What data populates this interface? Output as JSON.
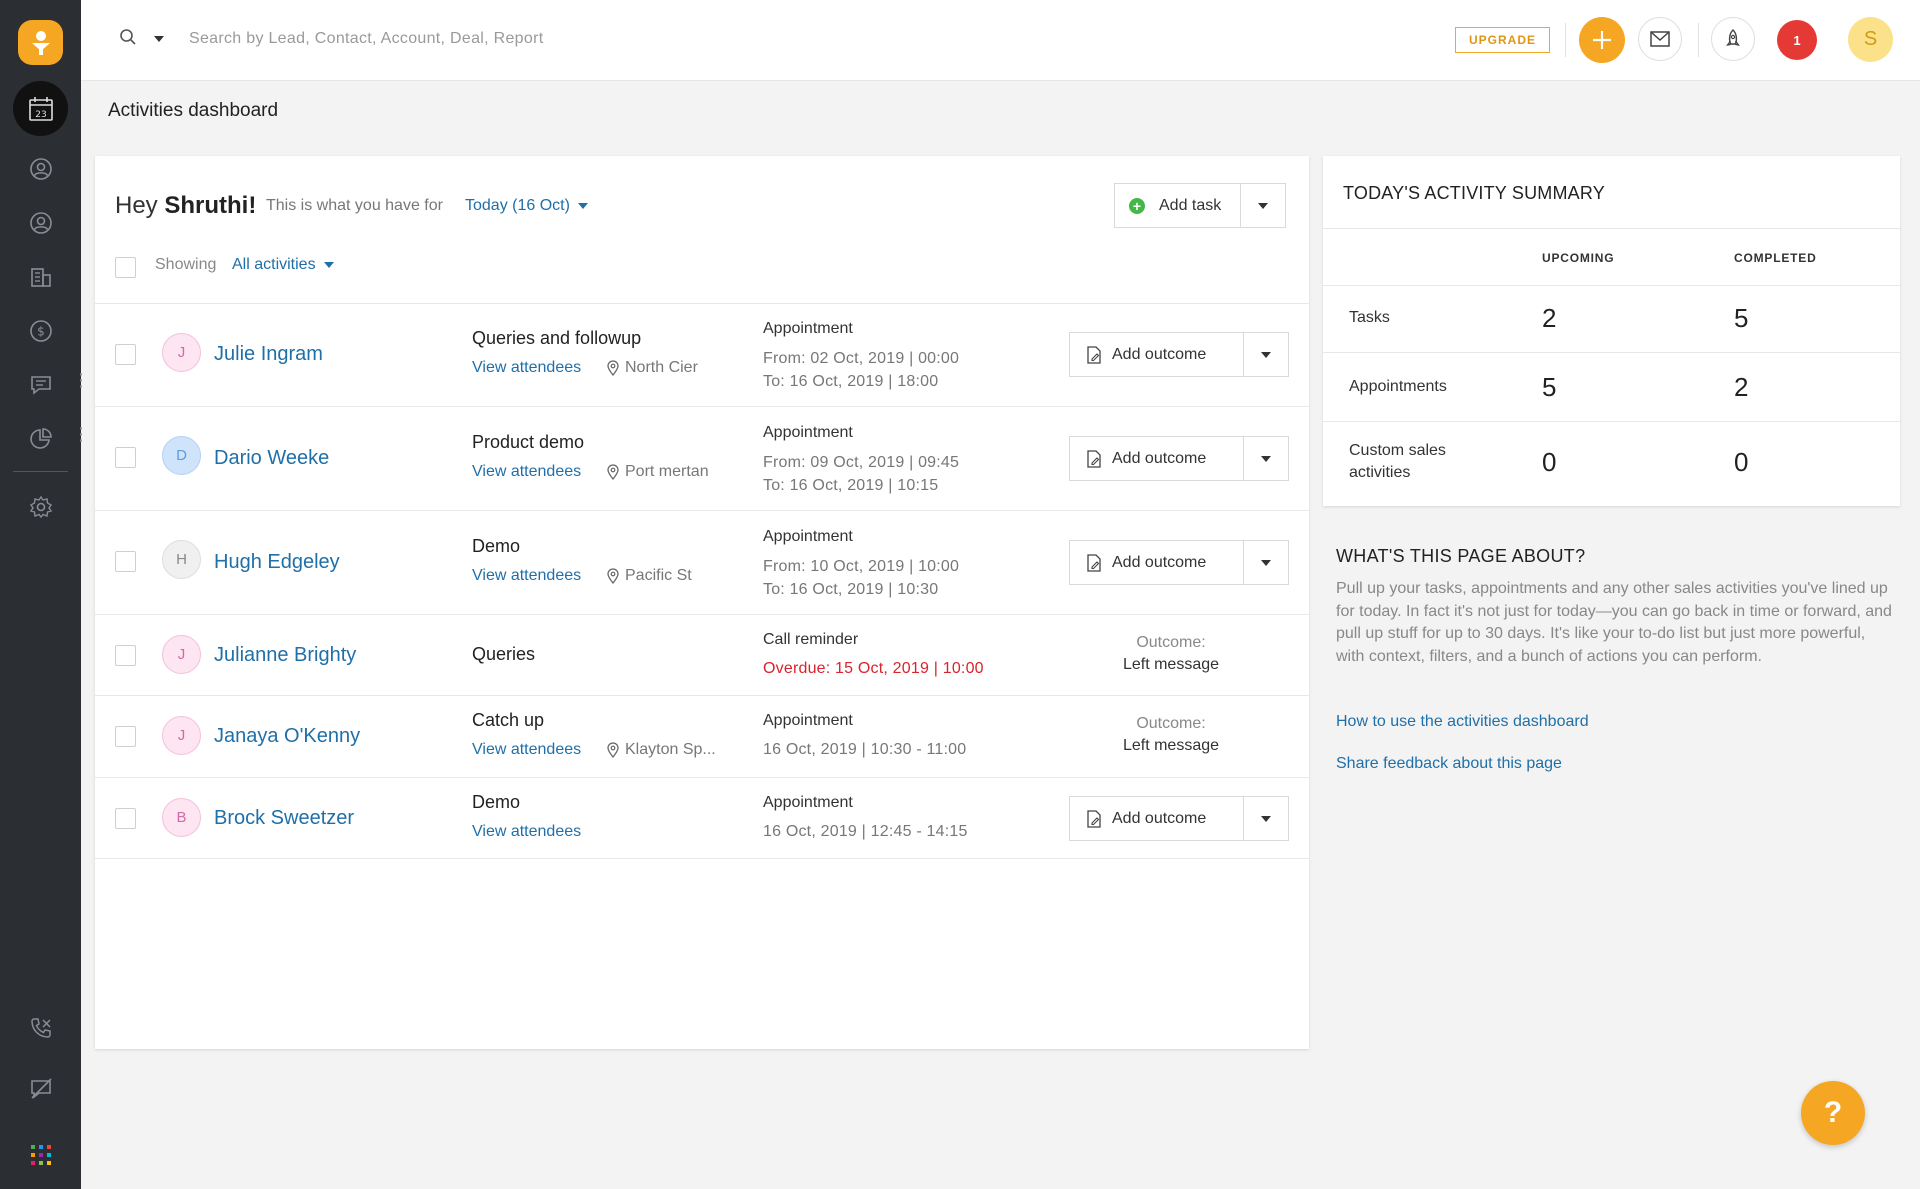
{
  "topbar": {
    "search_placeholder": "Search by Lead, Contact, Account, Deal, Report",
    "upgrade_label": "UPGRADE",
    "notification_count": "1",
    "user_initial": "S"
  },
  "sidebar": {
    "items": [
      {
        "name": "activities",
        "icon": "calendar-icon"
      },
      {
        "name": "leads",
        "icon": "lead-icon"
      },
      {
        "name": "contacts",
        "icon": "contact-icon"
      },
      {
        "name": "accounts",
        "icon": "building-icon"
      },
      {
        "name": "deals",
        "icon": "dollar-icon"
      },
      {
        "name": "conversations",
        "icon": "chat-icon"
      },
      {
        "name": "reports",
        "icon": "pie-chart-icon"
      },
      {
        "name": "settings",
        "icon": "gear-icon"
      },
      {
        "name": "phone",
        "icon": "phone-off-icon"
      },
      {
        "name": "feedback",
        "icon": "message-off-icon"
      },
      {
        "name": "apps",
        "icon": "apps-grid-icon"
      }
    ]
  },
  "page": {
    "title": "Activities dashboard"
  },
  "main": {
    "greeting_prefix": "Hey",
    "greeting_name": "Shruthi!",
    "subtext": "This is what you have for",
    "date_label": "Today (16 Oct)",
    "showing_label": "Showing",
    "filter_label": "All activities",
    "add_task_label": "Add task",
    "add_outcome_label": "Add outcome",
    "view_attendees_label": "View attendees",
    "outcome_prefix": "Outcome:",
    "activities": [
      {
        "initial": "J",
        "contact": "Julie Ingram",
        "subject": "Queries and followup",
        "location": "North Cier",
        "type": "Appointment",
        "line1": "From: 02 Oct, 2019 | 00:00",
        "line2": "To: 16 Oct, 2019 | 18:00",
        "outcome": ""
      },
      {
        "initial": "D",
        "contact": "Dario Weeke",
        "subject": "Product demo",
        "location": "Port mertan",
        "type": "Appointment",
        "line1": "From: 09 Oct, 2019 | 09:45",
        "line2": "To: 16 Oct, 2019 | 10:15",
        "outcome": ""
      },
      {
        "initial": "H",
        "contact": "Hugh Edgeley",
        "subject": "Demo",
        "location": "Pacific St",
        "type": "Appointment",
        "line1": "From: 10 Oct, 2019 | 10:00",
        "line2": "To: 16 Oct, 2019 | 10:30",
        "outcome": ""
      },
      {
        "initial": "J",
        "contact": "Julianne Brighty",
        "subject": "Queries",
        "location": "",
        "type": "Call reminder",
        "line1": "Overdue: 15 Oct, 2019 | 10:00",
        "line2": "",
        "outcome": "Left message"
      },
      {
        "initial": "J",
        "contact": "Janaya O'Kenny",
        "subject": "Catch up",
        "location": "Klayton Sp...",
        "type": "Appointment",
        "line1": "16 Oct, 2019 | 10:30 - 11:00",
        "line2": "",
        "outcome": "Left message"
      },
      {
        "initial": "B",
        "contact": "Brock Sweetzer",
        "subject": "Demo",
        "location": "",
        "type": "Appointment",
        "line1": "16 Oct, 2019 | 12:45 - 14:15",
        "line2": "",
        "outcome": ""
      }
    ]
  },
  "summary": {
    "title": "TODAY'S ACTIVITY SUMMARY",
    "col_upcoming": "UPCOMING",
    "col_completed": "COMPLETED",
    "rows": [
      {
        "label": "Tasks",
        "upcoming": "2",
        "completed": "5"
      },
      {
        "label": "Appointments",
        "upcoming": "5",
        "completed": "2"
      },
      {
        "label": "Custom sales activities",
        "upcoming": "0",
        "completed": "0"
      }
    ]
  },
  "about": {
    "title": "WHAT'S THIS PAGE ABOUT?",
    "text": "Pull up your tasks, appointments and any other sales activities you've lined up for today. In fact it's not just for today—you can go back in time or forward, and pull up stuff for up to 30 days. It's like your to-do list but just more powerful, with context, filters, and a bunch of actions you can perform.",
    "link1": "How to use the activities dashboard",
    "link2": "Share feedback about this page"
  },
  "help_label": "?",
  "colors": {
    "accent": "#f5a623",
    "link": "#1f6fa8",
    "overdue": "#d9232d",
    "sidebar": "#2b2e33"
  }
}
